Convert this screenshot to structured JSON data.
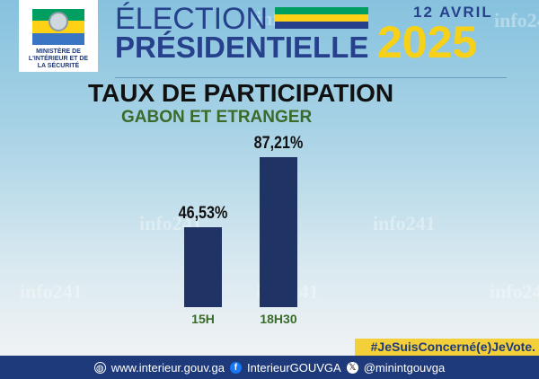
{
  "logo": {
    "text": [
      "MINISTÈRE DE",
      "L'INTÉRIEUR ET DE",
      "LA SÉCURITÉ"
    ]
  },
  "header": {
    "line1": "ÉLECTION",
    "line2": "PRÉSIDENTIELLE",
    "date": "12 AVRIL",
    "year": "2025"
  },
  "flag_colors": [
    "#009e60",
    "#fcd116",
    "#3a75c4"
  ],
  "watermark": "info241",
  "chart_data": {
    "type": "bar",
    "title": "TAUX DE PARTICIPATION",
    "subtitle": "GABON ET ETRANGER",
    "categories": [
      "15H",
      "18H30"
    ],
    "values": [
      46.53,
      87.21
    ],
    "value_labels": [
      "46,53%",
      "87,21%"
    ],
    "bar_color": "#1f3465",
    "ylim": [
      0,
      100
    ],
    "grid": false
  },
  "hashtag": "#JeSuisConcerné(e)JeVote.",
  "footer": {
    "website": "www.interieur.gouv.ga",
    "facebook": "InterieurGOUVGA",
    "x": "@minintgouvga"
  }
}
